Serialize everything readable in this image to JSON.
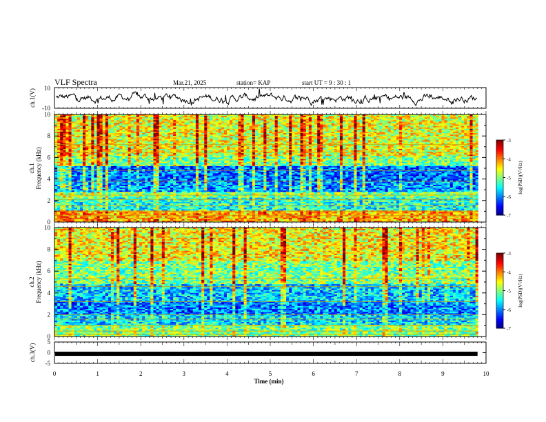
{
  "header": {
    "title": "VLF Spectra",
    "date": "Mar.21, 2025",
    "station": "station= KAP",
    "start": "start  UT =   9 : 30 : 1"
  },
  "colors": {
    "frame": "#000000",
    "spectral_low": "#0000c8",
    "spectral_high": "#d00000"
  },
  "chart_data": [
    {
      "type": "line",
      "panel": "ch1-waveform",
      "ylabel": "ch.1(V)",
      "ylim": [
        -10,
        10
      ],
      "y_ticks": [
        "10",
        "-10"
      ],
      "xlim": [
        0,
        10
      ],
      "description_series": "noisy voltage trace, approx amplitude ±7 V"
    },
    {
      "type": "heatmap",
      "panel": "ch1-spectrogram",
      "ylabel": "ch.1\nFrequency (kHz)",
      "ylabel_lines": [
        "ch.1",
        "Frequency (kHz)"
      ],
      "ylim": [
        0,
        10
      ],
      "y_ticks": [
        "0",
        "2",
        "4",
        "6",
        "8",
        "10"
      ],
      "xlim": [
        0,
        9.82
      ],
      "colorbar": {
        "label": "log(PSD)(V²/Hz)",
        "range": [
          -7,
          -3
        ],
        "ticks": [
          "-3",
          "-4",
          "-5",
          "-6",
          "-7"
        ]
      },
      "bands_kHz": [
        {
          "from": 0.0,
          "to": 1.0,
          "level": -4.2
        },
        {
          "from": 1.0,
          "to": 2.2,
          "level": -5.4
        },
        {
          "from": 2.2,
          "to": 2.8,
          "level": -5.0
        },
        {
          "from": 2.8,
          "to": 3.8,
          "level": -5.9
        },
        {
          "from": 3.8,
          "to": 5.2,
          "level": -6.1
        },
        {
          "from": 5.2,
          "to": 6.2,
          "level": -5.0
        },
        {
          "from": 6.2,
          "to": 10.0,
          "level": -4.6
        }
      ]
    },
    {
      "type": "heatmap",
      "panel": "ch2-spectrogram",
      "ylabel": "ch.2\nFrequency (kHz)",
      "ylabel_lines": [
        "ch.2",
        "Frequency (kHz)"
      ],
      "ylim": [
        0,
        10
      ],
      "y_ticks": [
        "0",
        "2",
        "4",
        "6",
        "8",
        "10"
      ],
      "xlim": [
        0,
        9.82
      ],
      "colorbar": {
        "label": "log(PSD)(V²/Hz)",
        "range": [
          -7,
          -3
        ],
        "ticks": [
          "-3",
          "-4",
          "-5",
          "-6",
          "-7"
        ]
      },
      "bands_kHz": [
        {
          "from": 0.0,
          "to": 1.0,
          "level": -5.0
        },
        {
          "from": 1.0,
          "to": 2.0,
          "level": -5.6
        },
        {
          "from": 2.0,
          "to": 3.2,
          "level": -6.0
        },
        {
          "from": 3.2,
          "to": 4.8,
          "level": -5.7
        },
        {
          "from": 4.8,
          "to": 7.0,
          "level": -5.0
        },
        {
          "from": 7.0,
          "to": 10.0,
          "level": -4.5
        }
      ]
    },
    {
      "type": "line",
      "panel": "ch3-waveform",
      "ylabel": "ch.3(V)",
      "ylim": [
        -5,
        5
      ],
      "y_ticks": [
        "5",
        "0",
        "-5"
      ],
      "xlim": [
        0,
        10
      ],
      "x_ticks": [
        "0",
        "1",
        "2",
        "3",
        "4",
        "5",
        "6",
        "7",
        "8",
        "9",
        "10"
      ],
      "xlabel": "Time  (min)",
      "constant_level": -0.5
    }
  ]
}
